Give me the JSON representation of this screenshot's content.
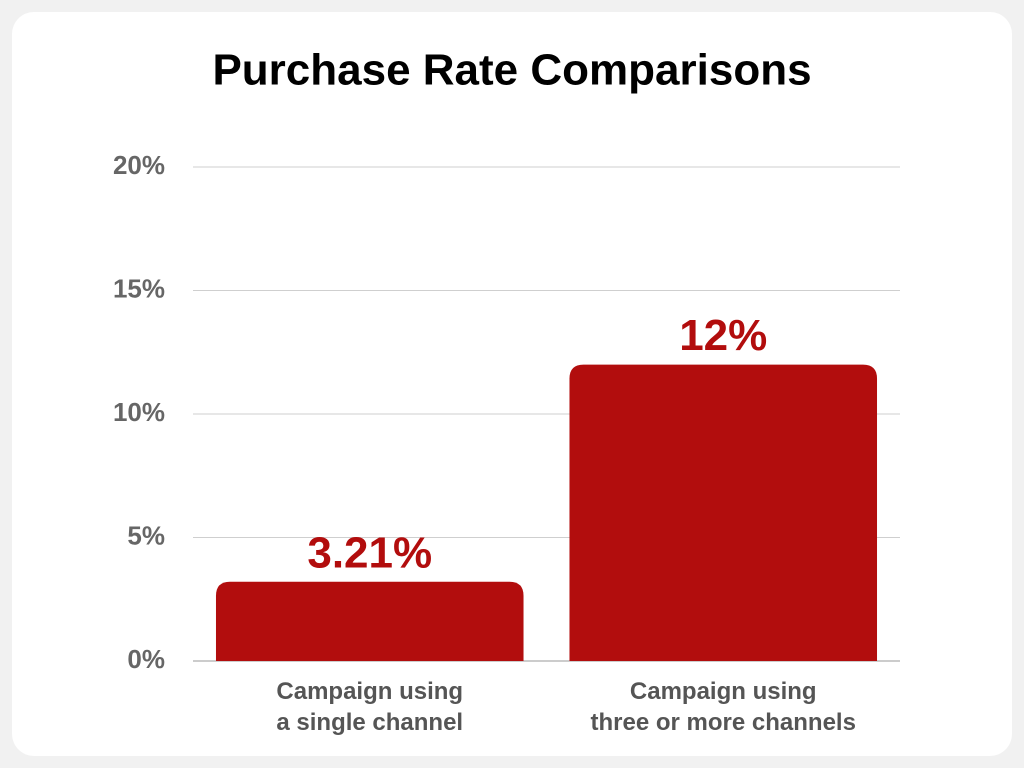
{
  "chart_data": {
    "type": "bar",
    "title": "Purchase Rate Comparisons",
    "categories": [
      "Campaign using\na single channel",
      "Campaign using\nthree or more channels"
    ],
    "values": [
      3.21,
      12
    ],
    "value_labels": [
      "3.21%",
      "12%"
    ],
    "color": "#b20d0d",
    "ylim": [
      0,
      20
    ],
    "yticks": [
      {
        "value": 0,
        "label": "0%"
      },
      {
        "value": 5,
        "label": "5%"
      },
      {
        "value": 10,
        "label": "10%"
      },
      {
        "value": 15,
        "label": "15%"
      },
      {
        "value": 20,
        "label": "20%"
      }
    ],
    "grid": true
  }
}
